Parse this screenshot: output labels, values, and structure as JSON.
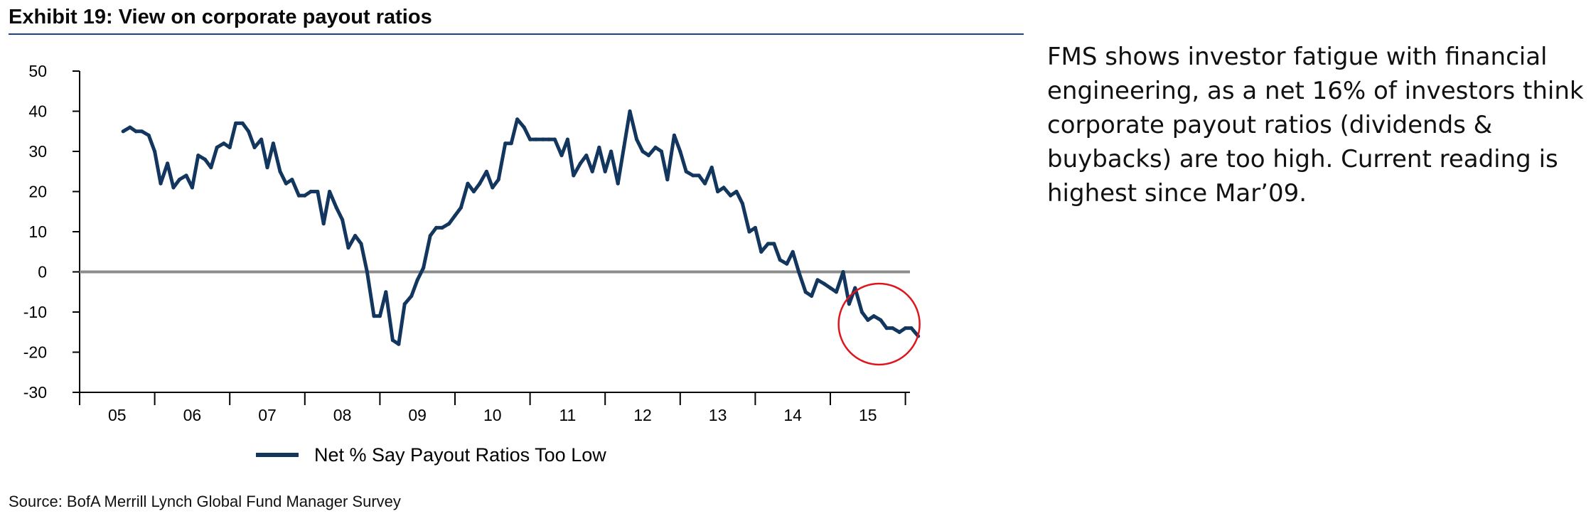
{
  "header": {
    "title": "Exhibit 19: View on corporate payout ratios"
  },
  "commentary": {
    "text": "FMS shows investor fatigue with financial engineering, as a net 16% of investors think corporate payout ratios (dividends & buybacks) are too high. Current reading is highest since Mar’09."
  },
  "footer": {
    "source": "Source: BofA Merrill Lynch Global Fund Manager Survey"
  },
  "colors": {
    "series": "#13365e",
    "zero_line": "#8c8c8c",
    "highlight_circle": "#e0141e",
    "rule": "#1f3f8f"
  },
  "chart_data": {
    "type": "line",
    "title": "",
    "xlabel": "",
    "ylabel": "",
    "ylim": [
      -30,
      50
    ],
    "yticks": [
      50,
      40,
      30,
      20,
      10,
      0,
      -10,
      -20,
      -30
    ],
    "xlim": [
      2005.0,
      2016.25
    ],
    "year_labels": [
      "05",
      "06",
      "07",
      "08",
      "09",
      "10",
      "11",
      "12",
      "13",
      "14",
      "15"
    ],
    "reference_line": 0,
    "highlight": {
      "center": [
        2015.65,
        -13
      ],
      "note": "latest readings circled"
    },
    "legend": {
      "label": "Net % Say Payout Ratios Too Low",
      "position": "bottom-center"
    },
    "series": [
      {
        "name": "Net % Say Payout Ratios Too Low",
        "points": [
          [
            2005.58,
            35
          ],
          [
            2005.67,
            36
          ],
          [
            2005.75,
            35
          ],
          [
            2005.83,
            35
          ],
          [
            2005.92,
            34
          ],
          [
            2006.0,
            30
          ],
          [
            2006.08,
            22
          ],
          [
            2006.17,
            27
          ],
          [
            2006.25,
            21
          ],
          [
            2006.33,
            23
          ],
          [
            2006.42,
            24
          ],
          [
            2006.5,
            21
          ],
          [
            2006.58,
            29
          ],
          [
            2006.67,
            28
          ],
          [
            2006.75,
            26
          ],
          [
            2006.83,
            31
          ],
          [
            2006.92,
            32
          ],
          [
            2007.0,
            31
          ],
          [
            2007.08,
            37
          ],
          [
            2007.17,
            37
          ],
          [
            2007.25,
            35
          ],
          [
            2007.33,
            31
          ],
          [
            2007.42,
            33
          ],
          [
            2007.5,
            26
          ],
          [
            2007.58,
            32
          ],
          [
            2007.67,
            25
          ],
          [
            2007.75,
            22
          ],
          [
            2007.83,
            23
          ],
          [
            2007.92,
            19
          ],
          [
            2008.0,
            19
          ],
          [
            2008.08,
            20
          ],
          [
            2008.17,
            20
          ],
          [
            2008.25,
            12
          ],
          [
            2008.33,
            20
          ],
          [
            2008.42,
            16
          ],
          [
            2008.5,
            13
          ],
          [
            2008.58,
            6
          ],
          [
            2008.67,
            9
          ],
          [
            2008.75,
            7
          ],
          [
            2008.83,
            0
          ],
          [
            2008.92,
            -11
          ],
          [
            2009.0,
            -11
          ],
          [
            2009.08,
            -5
          ],
          [
            2009.17,
            -17
          ],
          [
            2009.25,
            -18
          ],
          [
            2009.33,
            -8
          ],
          [
            2009.42,
            -6
          ],
          [
            2009.5,
            -2
          ],
          [
            2009.58,
            1
          ],
          [
            2009.67,
            9
          ],
          [
            2009.75,
            11
          ],
          [
            2009.83,
            11
          ],
          [
            2009.92,
            12
          ],
          [
            2010.0,
            14
          ],
          [
            2010.08,
            16
          ],
          [
            2010.17,
            22
          ],
          [
            2010.25,
            20
          ],
          [
            2010.33,
            22
          ],
          [
            2010.42,
            25
          ],
          [
            2010.5,
            21
          ],
          [
            2010.58,
            23
          ],
          [
            2010.67,
            32
          ],
          [
            2010.75,
            32
          ],
          [
            2010.83,
            38
          ],
          [
            2010.92,
            36
          ],
          [
            2011.0,
            33
          ],
          [
            2011.08,
            33
          ],
          [
            2011.17,
            33
          ],
          [
            2011.25,
            33
          ],
          [
            2011.33,
            33
          ],
          [
            2011.42,
            29
          ],
          [
            2011.5,
            33
          ],
          [
            2011.58,
            24
          ],
          [
            2011.67,
            27
          ],
          [
            2011.75,
            29
          ],
          [
            2011.83,
            25
          ],
          [
            2011.92,
            31
          ],
          [
            2012.0,
            25
          ],
          [
            2012.08,
            30
          ],
          [
            2012.17,
            22
          ],
          [
            2012.25,
            31
          ],
          [
            2012.33,
            40
          ],
          [
            2012.42,
            33
          ],
          [
            2012.5,
            30
          ],
          [
            2012.58,
            29
          ],
          [
            2012.67,
            31
          ],
          [
            2012.75,
            30
          ],
          [
            2012.83,
            23
          ],
          [
            2012.92,
            34
          ],
          [
            2013.0,
            30
          ],
          [
            2013.08,
            25
          ],
          [
            2013.17,
            24
          ],
          [
            2013.25,
            24
          ],
          [
            2013.33,
            22
          ],
          [
            2013.42,
            26
          ],
          [
            2013.5,
            20
          ],
          [
            2013.58,
            21
          ],
          [
            2013.67,
            19
          ],
          [
            2013.75,
            20
          ],
          [
            2013.83,
            17
          ],
          [
            2013.92,
            10
          ],
          [
            2014.0,
            11
          ],
          [
            2014.08,
            5
          ],
          [
            2014.17,
            7
          ],
          [
            2014.25,
            7
          ],
          [
            2014.33,
            3
          ],
          [
            2014.42,
            2
          ],
          [
            2014.5,
            5
          ],
          [
            2014.58,
            0
          ],
          [
            2014.67,
            -5
          ],
          [
            2014.75,
            -6
          ],
          [
            2014.83,
            -2
          ],
          [
            2014.92,
            -3
          ],
          [
            2015.0,
            -4
          ],
          [
            2015.08,
            -5
          ],
          [
            2015.17,
            0
          ],
          [
            2015.25,
            -8
          ],
          [
            2015.33,
            -4
          ],
          [
            2015.42,
            -10
          ],
          [
            2015.5,
            -12
          ],
          [
            2015.58,
            -11
          ],
          [
            2015.67,
            -12
          ],
          [
            2015.75,
            -14
          ],
          [
            2015.83,
            -14
          ],
          [
            2015.92,
            -15
          ],
          [
            2016.0,
            -14
          ],
          [
            2016.08,
            -14
          ],
          [
            2016.17,
            -16
          ]
        ]
      }
    ]
  }
}
